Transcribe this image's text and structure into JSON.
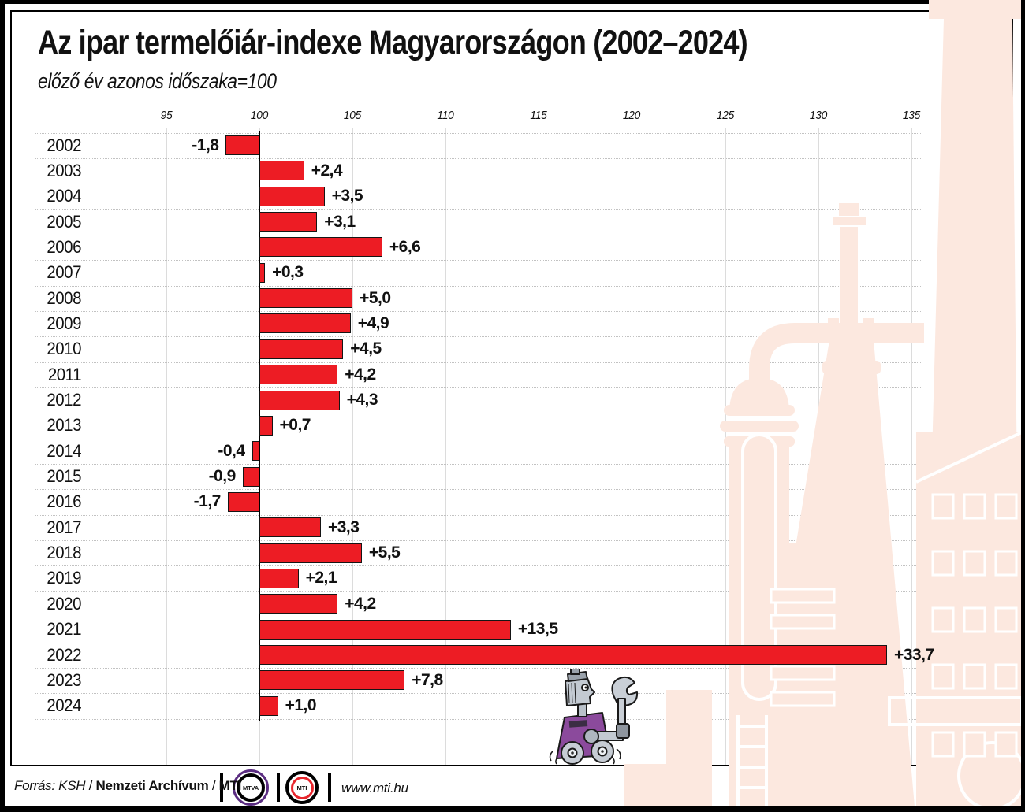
{
  "header": {
    "title": "Az ipar termelőiár-indexe Magyarországon (2002–2024)",
    "subtitle": "előző év azonos időszaka=100"
  },
  "chart_data": {
    "type": "bar",
    "orientation": "horizontal",
    "title": "Az ipar termelőiár-indexe Magyarországon (2002–2024)",
    "subtitle": "előző év azonos időszaka=100",
    "baseline_value": 100,
    "axis_ticks": [
      95,
      100,
      105,
      110,
      115,
      120,
      125,
      130,
      135
    ],
    "axis_range": [
      93.5,
      136.2
    ],
    "grid": true,
    "legend": "none",
    "categories": [
      "2002",
      "2003",
      "2004",
      "2005",
      "2006",
      "2007",
      "2008",
      "2009",
      "2010",
      "2011",
      "2012",
      "2013",
      "2014",
      "2015",
      "2016",
      "2017",
      "2018",
      "2019",
      "2020",
      "2021",
      "2022",
      "2023",
      "2024"
    ],
    "values_change_vs_100": [
      -1.8,
      2.4,
      3.5,
      3.1,
      6.6,
      0.3,
      5.0,
      4.9,
      4.5,
      4.2,
      4.3,
      0.7,
      -0.4,
      -0.9,
      -1.7,
      3.3,
      5.5,
      2.1,
      4.2,
      13.5,
      33.7,
      7.8,
      1.0
    ],
    "index_values": [
      98.2,
      102.4,
      103.5,
      103.1,
      106.6,
      100.3,
      105.0,
      104.9,
      104.5,
      104.2,
      104.3,
      100.7,
      99.6,
      99.1,
      98.3,
      103.3,
      105.5,
      102.1,
      104.2,
      113.5,
      133.7,
      107.8,
      101.0
    ],
    "bar_labels": [
      "-1,8",
      "+2,4",
      "+3,5",
      "+3,1",
      "+6,6",
      "+0,3",
      "+5,0",
      "+4,9",
      "+4,5",
      "+4,2",
      "+4,3",
      "+0,7",
      "-0,4",
      "-0,9",
      "-1,7",
      "+3,3",
      "+5,5",
      "+2,1",
      "+4,2",
      "+13,5",
      "+33,7",
      "+7,8",
      "+1,0"
    ]
  },
  "footer": {
    "source": {
      "prefix": "Forrás: KSH",
      "sep": " / ",
      "archive": "Nemzeti Archívum",
      "agency": "MTI"
    },
    "website": "www.mti.hu",
    "logos": {
      "mtva": "MTVA",
      "mti": "MTI"
    }
  },
  "colors": {
    "bar_red": "#ed1c24",
    "bar_outline": "#151515",
    "illustration_pink": "#fce8df",
    "robot_purple": "#8b4a9c",
    "mtva_purple": "#5b2d82",
    "mti_red": "#e8262d",
    "frame_black": "#000000",
    "grid_vertical": "#dcdcdc",
    "grid_horizontal": "#c2c2c2"
  }
}
